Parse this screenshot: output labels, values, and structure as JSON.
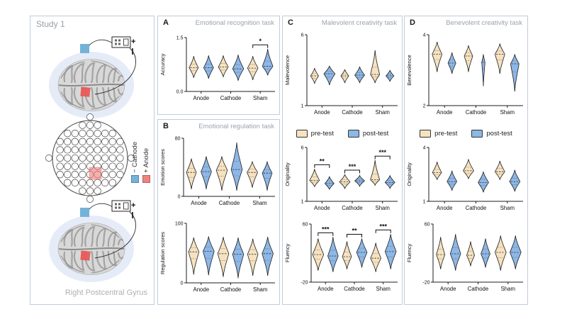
{
  "study": {
    "label": "Study 1",
    "region_label": "Right Postcentral Gyrus"
  },
  "montage_legend": {
    "cathode_label": "− Cathode",
    "anode_label": "+ Anode"
  },
  "stimulator": {
    "plus_label": "+",
    "minus_label": "−"
  },
  "legend": {
    "pre_label": "pre-test",
    "post_label": "post-test"
  },
  "panels": {
    "A": {
      "letter": "A",
      "title": "Emotional recognition task"
    },
    "B": {
      "letter": "B",
      "title": "Emotional regulation task"
    },
    "C": {
      "letter": "C",
      "title": "Malevolent creativity task"
    },
    "D": {
      "letter": "D",
      "title": "Benevolent creativity task"
    }
  },
  "colors": {
    "pre_fill": "#f6e2c0",
    "post_fill": "#8db7e6",
    "cathode_blue": "#74b2da",
    "anode_red": "#f08280",
    "panel_border": "#c1ccdb",
    "panel_title": "#9ba3ad"
  },
  "chart_data": [
    {
      "id": "accuracy",
      "panel": "A",
      "type": "violin",
      "ylabel": "Accuracy",
      "ylim": [
        0,
        1.5
      ],
      "ytick_labels": [
        "0.0",
        "1.5"
      ],
      "categories": [
        "Anode",
        "Cathode",
        "Sham"
      ],
      "series": [
        {
          "name": "pre-test",
          "violins": [
            {
              "c": 0.66,
              "lo": 0.38,
              "hi": 0.98,
              "w": 0.7
            },
            {
              "c": 0.68,
              "lo": 0.4,
              "hi": 1.0,
              "w": 0.75
            },
            {
              "c": 0.65,
              "lo": 0.32,
              "hi": 0.98,
              "w": 0.8
            }
          ]
        },
        {
          "name": "post-test",
          "violins": [
            {
              "c": 0.66,
              "lo": 0.36,
              "hi": 1.0,
              "w": 0.75
            },
            {
              "c": 0.63,
              "lo": 0.3,
              "hi": 1.02,
              "w": 0.85
            },
            {
              "c": 0.7,
              "lo": 0.45,
              "hi": 1.18,
              "w": 0.8
            }
          ]
        }
      ],
      "significance": [
        {
          "category": "Sham",
          "label": "*"
        }
      ]
    },
    {
      "id": "emotion-scores",
      "panel": "B",
      "type": "violin",
      "ylabel": "Emotion scores",
      "ylim": [
        0,
        80
      ],
      "ytick_labels": [
        "0",
        "80"
      ],
      "categories": [
        "Anode",
        "Cathode",
        "Sham"
      ],
      "series": [
        {
          "name": "pre-test",
          "violins": [
            {
              "c": 33,
              "lo": 10,
              "hi": 52,
              "w": 0.75
            },
            {
              "c": 36,
              "lo": 8,
              "hi": 55,
              "w": 0.85
            },
            {
              "c": 33,
              "lo": 12,
              "hi": 48,
              "w": 0.8
            }
          ]
        },
        {
          "name": "post-test",
          "violins": [
            {
              "c": 34,
              "lo": 10,
              "hi": 55,
              "w": 0.8
            },
            {
              "c": 37,
              "lo": 8,
              "hi": 74,
              "w": 0.85
            },
            {
              "c": 32,
              "lo": 8,
              "hi": 48,
              "w": 0.75
            }
          ]
        }
      ],
      "significance": []
    },
    {
      "id": "regulation-scores",
      "panel": "B",
      "type": "violin",
      "ylabel": "Regulation scores",
      "ylim": [
        0,
        100
      ],
      "ytick_labels": [
        "0",
        "100"
      ],
      "categories": [
        "Anode",
        "Cathode",
        "Sham"
      ],
      "series": [
        {
          "name": "pre-test",
          "violins": [
            {
              "c": 52,
              "lo": 14,
              "hi": 76,
              "w": 0.8
            },
            {
              "c": 49,
              "lo": 10,
              "hi": 77,
              "w": 0.85
            },
            {
              "c": 48,
              "lo": 12,
              "hi": 74,
              "w": 0.8
            }
          ]
        },
        {
          "name": "post-test",
          "violins": [
            {
              "c": 53,
              "lo": 13,
              "hi": 78,
              "w": 0.85
            },
            {
              "c": 48,
              "lo": 8,
              "hi": 76,
              "w": 0.85
            },
            {
              "c": 49,
              "lo": 12,
              "hi": 77,
              "w": 0.85
            }
          ]
        }
      ],
      "significance": []
    },
    {
      "id": "malevolence",
      "panel": "C",
      "type": "violin",
      "ylabel": "Malevolence",
      "ylim": [
        1,
        6
      ],
      "ytick_labels": [
        "1",
        "6"
      ],
      "categories": [
        "Anode",
        "Cathode",
        "Sham"
      ],
      "series": [
        {
          "name": "pre-test",
          "violins": [
            {
              "c": 3.1,
              "lo": 2.55,
              "hi": 3.65,
              "w": 0.6
            },
            {
              "c": 3.1,
              "lo": 2.6,
              "hi": 3.55,
              "w": 0.6
            },
            {
              "c": 3.2,
              "lo": 2.6,
              "hi": 4.9,
              "w": 0.7
            }
          ]
        },
        {
          "name": "post-test",
          "violins": [
            {
              "c": 3.25,
              "lo": 2.45,
              "hi": 3.8,
              "w": 0.85
            },
            {
              "c": 3.15,
              "lo": 2.6,
              "hi": 3.75,
              "w": 0.75
            },
            {
              "c": 3.1,
              "lo": 2.7,
              "hi": 3.5,
              "w": 0.6
            }
          ]
        }
      ],
      "significance": []
    },
    {
      "id": "malevolent-originality",
      "panel": "C",
      "type": "violin",
      "ylabel": "Originality",
      "ylim": [
        1,
        6
      ],
      "ytick_labels": [
        "1",
        "6"
      ],
      "categories": [
        "Anode",
        "Cathode",
        "Sham"
      ],
      "series": [
        {
          "name": "pre-test",
          "violins": [
            {
              "c": 2.95,
              "lo": 2.35,
              "hi": 4.0,
              "w": 0.75
            },
            {
              "c": 2.8,
              "lo": 2.2,
              "hi": 3.5,
              "w": 0.8
            },
            {
              "c": 3.0,
              "lo": 2.5,
              "hi": 4.8,
              "w": 0.7
            }
          ]
        },
        {
          "name": "post-test",
          "violins": [
            {
              "c": 2.65,
              "lo": 2.1,
              "hi": 3.3,
              "w": 0.7
            },
            {
              "c": 2.9,
              "lo": 2.4,
              "hi": 3.4,
              "w": 0.75
            },
            {
              "c": 2.75,
              "lo": 2.2,
              "hi": 3.4,
              "w": 0.75
            }
          ]
        }
      ],
      "significance": [
        {
          "category": "Anode",
          "label": "**"
        },
        {
          "category": "Cathode",
          "label": "***"
        },
        {
          "category": "Sham",
          "label": "***"
        }
      ]
    },
    {
      "id": "malevolent-fluency",
      "panel": "C",
      "type": "violin",
      "ylabel": "Fluency",
      "ylim": [
        -20,
        60
      ],
      "ytick_labels": [
        "-20",
        "60"
      ],
      "categories": [
        "Anode",
        "Cathode",
        "Sham"
      ],
      "series": [
        {
          "name": "pre-test",
          "violins": [
            {
              "c": 18,
              "lo": -4,
              "hi": 40,
              "w": 0.85
            },
            {
              "c": 15,
              "lo": -2,
              "hi": 36,
              "w": 0.7
            },
            {
              "c": 13,
              "lo": -6,
              "hi": 34,
              "w": 0.8
            }
          ]
        },
        {
          "name": "post-test",
          "violins": [
            {
              "c": 16,
              "lo": -6,
              "hi": 42,
              "w": 0.8
            },
            {
              "c": 21,
              "lo": 0,
              "hi": 40,
              "w": 0.8
            },
            {
              "c": 22,
              "lo": -2,
              "hi": 46,
              "w": 0.85
            }
          ]
        }
      ],
      "significance": [
        {
          "category": "Anode",
          "label": "***"
        },
        {
          "category": "Cathode",
          "label": "**"
        },
        {
          "category": "Sham",
          "label": "***"
        }
      ]
    },
    {
      "id": "benevolence",
      "panel": "D",
      "type": "violin",
      "ylabel": "Benevolence",
      "ylim": [
        2,
        4
      ],
      "ytick_labels": [
        "2",
        "4"
      ],
      "categories": [
        "Anode",
        "Cathode",
        "Sham"
      ],
      "series": [
        {
          "name": "pre-test",
          "violins": [
            {
              "c": 3.45,
              "lo": 2.95,
              "hi": 3.8,
              "w": 0.75
            },
            {
              "c": 3.4,
              "lo": 2.95,
              "hi": 3.7,
              "w": 0.65
            },
            {
              "c": 3.45,
              "lo": 2.9,
              "hi": 3.75,
              "w": 0.75
            }
          ]
        },
        {
          "name": "post-test",
          "violins": [
            {
              "c": 3.2,
              "lo": 2.9,
              "hi": 3.5,
              "w": 0.6
            },
            {
              "c": 3.22,
              "lo": 2.55,
              "hi": 3.45,
              "w": 0.25
            },
            {
              "c": 3.18,
              "lo": 2.4,
              "hi": 3.45,
              "w": 0.65
            }
          ]
        }
      ],
      "significance": []
    },
    {
      "id": "benevolent-originality",
      "panel": "D",
      "type": "violin",
      "ylabel": "Originality",
      "ylim": [
        1,
        4
      ],
      "ytick_labels": [
        "1",
        "4"
      ],
      "categories": [
        "Anode",
        "Cathode",
        "Sham"
      ],
      "series": [
        {
          "name": "pre-test",
          "violins": [
            {
              "c": 2.6,
              "lo": 2.2,
              "hi": 3.2,
              "w": 0.7
            },
            {
              "c": 2.7,
              "lo": 2.25,
              "hi": 3.35,
              "w": 0.8
            },
            {
              "c": 2.65,
              "lo": 2.2,
              "hi": 3.25,
              "w": 0.75
            }
          ]
        },
        {
          "name": "post-test",
          "violins": [
            {
              "c": 2.1,
              "lo": 1.6,
              "hi": 2.7,
              "w": 0.75
            },
            {
              "c": 2.05,
              "lo": 1.5,
              "hi": 2.65,
              "w": 0.8
            },
            {
              "c": 2.1,
              "lo": 1.55,
              "hi": 2.75,
              "w": 0.8
            }
          ]
        }
      ],
      "significance": []
    },
    {
      "id": "benevolent-fluency",
      "panel": "D",
      "type": "violin",
      "ylabel": "Fluency",
      "ylim": [
        -20,
        60
      ],
      "ytick_labels": [
        "-20",
        "60"
      ],
      "categories": [
        "Anode",
        "Cathode",
        "Sham"
      ],
      "series": [
        {
          "name": "pre-test",
          "violins": [
            {
              "c": 18,
              "lo": -2,
              "hi": 42,
              "w": 0.65
            },
            {
              "c": 17,
              "lo": 2,
              "hi": 36,
              "w": 0.6
            },
            {
              "c": 21,
              "lo": -4,
              "hi": 44,
              "w": 0.85
            }
          ]
        },
        {
          "name": "post-test",
          "violins": [
            {
              "c": 19,
              "lo": -4,
              "hi": 46,
              "w": 0.8
            },
            {
              "c": 19,
              "lo": 0,
              "hi": 40,
              "w": 0.7
            },
            {
              "c": 21,
              "lo": -2,
              "hi": 44,
              "w": 0.85
            }
          ]
        }
      ],
      "significance": []
    }
  ]
}
